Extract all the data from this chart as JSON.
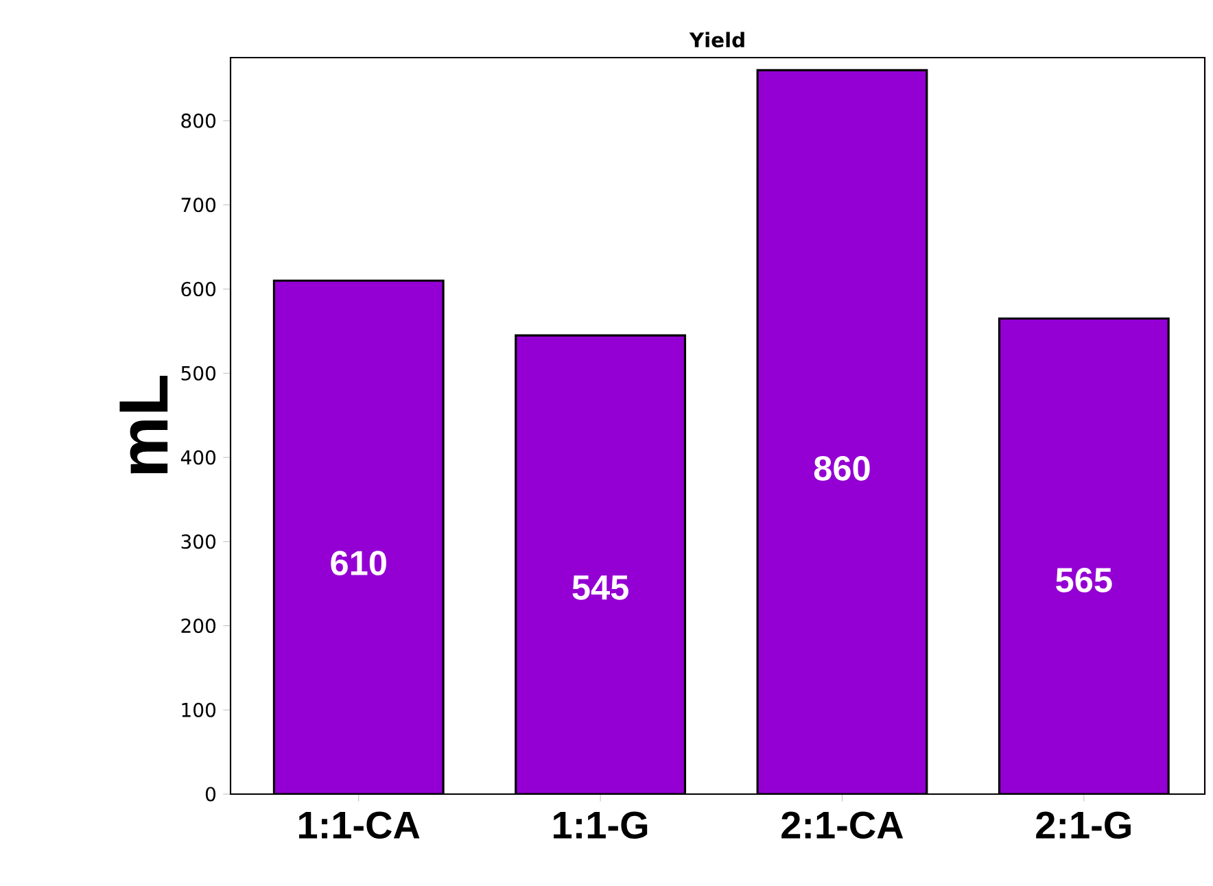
{
  "chart_data": {
    "type": "bar",
    "title": "Yield",
    "ylabel": "mL",
    "categories": [
      "1:1-CA",
      "1:1-G",
      "2:1-CA",
      "2:1-G"
    ],
    "values": [
      610,
      545,
      860,
      565
    ],
    "color": "#9400d3",
    "ylim": [
      0,
      875
    ],
    "yticks": [
      0,
      100,
      200,
      300,
      400,
      500,
      600,
      700,
      800
    ],
    "data_labels": true
  }
}
